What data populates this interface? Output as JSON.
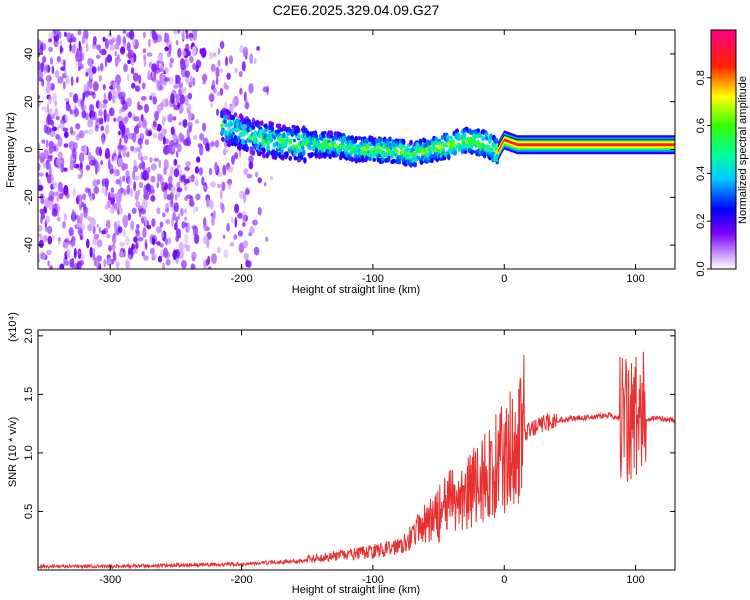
{
  "title": "C2E6.2025.329.04.09.G27",
  "chart_data": [
    {
      "type": "heatmap",
      "name": "spectrogram",
      "xlabel": "Height of straight line (km)",
      "ylabel": "Frequency (Hz)",
      "xlim": [
        -355,
        130
      ],
      "ylim": [
        -50,
        50
      ],
      "xticks": [
        -300,
        -200,
        -100,
        0,
        100
      ],
      "xtick_labels": [
        "-300",
        "-200",
        "-100",
        "0",
        "100"
      ],
      "yticks": [
        -40,
        -20,
        0,
        20,
        40
      ],
      "ytick_labels": [
        "-40",
        "-20",
        "0",
        "20",
        "40"
      ],
      "noise_region_x": [
        -355,
        -175
      ],
      "signal_track": {
        "x": [
          -215,
          -190,
          -170,
          -150,
          -130,
          -110,
          -90,
          -70,
          -55,
          -40,
          -30,
          -20,
          -12,
          -5,
          0,
          10,
          30,
          60,
          80,
          100,
          115,
          130
        ],
        "freq_hz": [
          10,
          5,
          3,
          2,
          2,
          0,
          0,
          -2,
          0,
          2,
          4,
          3,
          2,
          -1,
          4,
          2,
          2,
          2,
          2,
          2,
          2,
          2
        ]
      },
      "colorbar": {
        "label": "Normalized spectral amplitude",
        "range": [
          0,
          1
        ],
        "ticks": [
          0.0,
          0.2,
          0.4,
          0.6,
          0.8
        ],
        "tick_labels": [
          "0.0",
          "0.2",
          "0.4",
          "0.6",
          "0.8"
        ],
        "colormap": "rainbow (white-violet-blue-cyan-green-yellow-red-magenta)"
      },
      "grid": false
    },
    {
      "type": "line",
      "name": "snr",
      "xlabel": "Height of straight line (km)",
      "ylabel": "SNR (10 * v/v)",
      "scale_label": "(x10⁴)",
      "xlim": [
        -355,
        130
      ],
      "ylim": [
        0,
        2.05
      ],
      "xticks": [
        -300,
        -200,
        -100,
        0,
        100
      ],
      "xtick_labels": [
        "-300",
        "-200",
        "-100",
        "0",
        "100"
      ],
      "yticks": [
        0.5,
        1.0,
        1.5,
        2.0
      ],
      "ytick_labels": [
        "0.5",
        "1.0",
        "1.5",
        "2.0"
      ],
      "color": "#e83030",
      "series": [
        {
          "x": [
            -355,
            -300,
            -250,
            -200,
            -170,
            -150,
            -130,
            -110,
            -90,
            -80,
            -70,
            -60,
            -50,
            -40,
            -30,
            -20,
            -10,
            0,
            5,
            10,
            15,
            20,
            30,
            40,
            60,
            80,
            90,
            95,
            100,
            105,
            110,
            130
          ],
          "values": [
            0.03,
            0.03,
            0.04,
            0.05,
            0.07,
            0.08,
            0.1,
            0.12,
            0.15,
            0.18,
            0.25,
            0.35,
            0.45,
            0.55,
            0.6,
            0.7,
            0.8,
            0.9,
            1.0,
            1.1,
            1.15,
            1.2,
            1.25,
            1.28,
            1.3,
            1.32,
            1.3,
            1.25,
            1.3,
            1.28,
            1.3,
            1.28
          ]
        }
      ],
      "grid": false
    }
  ]
}
